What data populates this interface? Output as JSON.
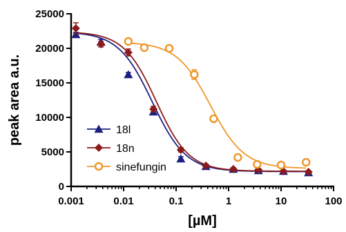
{
  "chart_data": {
    "type": "scatter",
    "title": "",
    "xlabel": "[µM]",
    "ylabel": "peak area a.u.",
    "xscale": "log",
    "xlim": [
      0.001,
      100
    ],
    "ylim": [
      0,
      25000
    ],
    "xticks": [
      {
        "value": 0.001,
        "label": "0.001"
      },
      {
        "value": 0.01,
        "label": "0.01"
      },
      {
        "value": 0.1,
        "label": "0.1"
      },
      {
        "value": 1,
        "label": "1"
      },
      {
        "value": 10,
        "label": "10"
      },
      {
        "value": 100,
        "label": "100"
      }
    ],
    "yticks": [
      {
        "value": 0,
        "label": "0"
      },
      {
        "value": 5000,
        "label": "5000"
      },
      {
        "value": 10000,
        "label": "10000"
      },
      {
        "value": 15000,
        "label": "15000"
      },
      {
        "value": 20000,
        "label": "20000"
      },
      {
        "value": 25000,
        "label": "25000"
      }
    ],
    "grid": false,
    "legend_position": "bottom-left",
    "series": [
      {
        "name": "18l",
        "color": "#1a1f80",
        "marker": "triangle",
        "x": [
          0.00123,
          0.0037,
          0.0123,
          0.037,
          0.123,
          0.37,
          1.23,
          3.7,
          11.1,
          33.3
        ],
        "y": [
          22000,
          20900,
          16200,
          10800,
          4000,
          2900,
          2500,
          2300,
          2200,
          2000
        ],
        "error": [
          300,
          400,
          300,
          300,
          300,
          200,
          200,
          100,
          100,
          100
        ],
        "fit": {
          "top": 22400,
          "bottom": 2150,
          "ic50": 0.035,
          "hill": 1.35
        }
      },
      {
        "name": "18n",
        "color": "#8b1a1a",
        "marker": "diamond",
        "x": [
          0.00123,
          0.0037,
          0.0123,
          0.037,
          0.123,
          0.37,
          1.23,
          3.7,
          11.1,
          33.3
        ],
        "y": [
          22900,
          20600,
          19400,
          11200,
          5300,
          3000,
          2500,
          2400,
          2200,
          2100
        ],
        "error": [
          800,
          400,
          500,
          400,
          300,
          200,
          200,
          100,
          100,
          100
        ],
        "fit": {
          "top": 22400,
          "bottom": 2200,
          "ic50": 0.042,
          "hill": 1.4
        }
      },
      {
        "name": "sinefungin",
        "color": "#f0962a",
        "marker": "circle",
        "x": [
          0.0123,
          0.0247,
          0.074,
          0.222,
          0.667,
          2.0,
          6.0,
          18.0,
          54.0
        ],
        "y": [
          21000,
          20100,
          20000,
          16200,
          9800,
          4200,
          3200,
          3100,
          3500
        ],
        "error": [
          400,
          400,
          200,
          700,
          300,
          200,
          200,
          200,
          200
        ],
        "plot_x": [
          0.0123,
          0.0247,
          0.074,
          0.222,
          0.52,
          1.5,
          3.5,
          10,
          30
        ],
        "fit": {
          "top": 20900,
          "bottom": 2600,
          "ic50": 0.45,
          "hill": 1.35
        }
      }
    ]
  }
}
